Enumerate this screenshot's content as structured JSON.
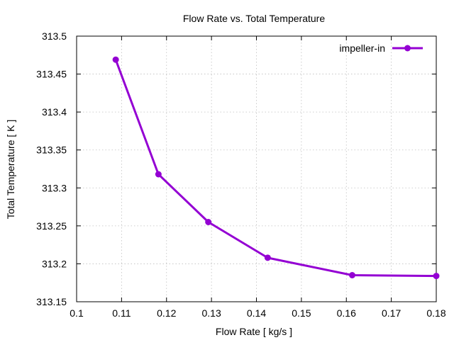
{
  "chart_data": {
    "type": "line",
    "title": "Flow Rate vs. Total Temperature",
    "xlabel": "Flow Rate [ kg/s ]",
    "ylabel": "Total Temperature [ K ]",
    "xlim": [
      0.1,
      0.18
    ],
    "ylim": [
      313.15,
      313.5
    ],
    "xticks": [
      0.1,
      0.11,
      0.12,
      0.13,
      0.14,
      0.15,
      0.16,
      0.17,
      0.18
    ],
    "xtick_labels": [
      "0.1",
      "0.11",
      "0.12",
      "0.13",
      "0.14",
      "0.15",
      "0.16",
      "0.17",
      "0.18"
    ],
    "yticks": [
      313.15,
      313.2,
      313.25,
      313.3,
      313.35,
      313.4,
      313.45,
      313.5
    ],
    "ytick_labels": [
      "313.15",
      "313.2",
      "313.25",
      "313.3",
      "313.35",
      "313.4",
      "313.45",
      "313.5"
    ],
    "grid": true,
    "legend_position": "top-right",
    "series": [
      {
        "name": "impeller-in",
        "color": "#9400d3",
        "x": [
          0.1087,
          0.1182,
          0.1293,
          0.1425,
          0.1613,
          0.18
        ],
        "y": [
          313.469,
          313.318,
          313.255,
          313.208,
          313.185,
          313.184
        ]
      }
    ]
  }
}
